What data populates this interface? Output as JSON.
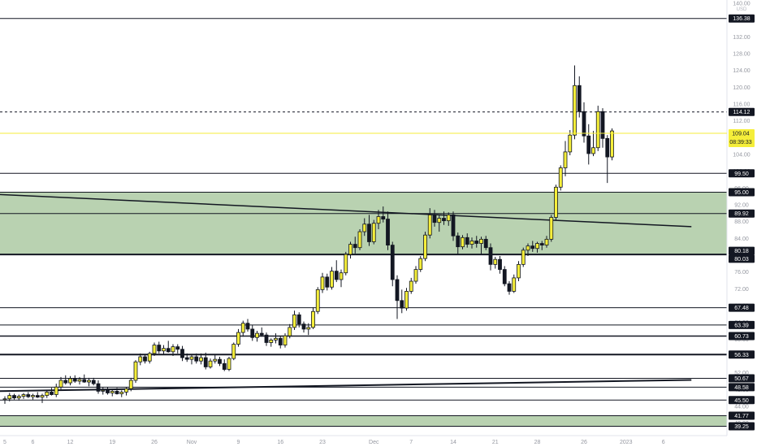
{
  "chart_data": {
    "type": "candlestick",
    "currency": "USD",
    "ylim": [
      38,
      140
    ],
    "price_axis_ticks": [
      "140.00",
      "136.00",
      "132.00",
      "128.00",
      "124.00",
      "120.00",
      "116.00",
      "112.00",
      "108.00",
      "104.00",
      "100.00",
      "96.00",
      "92.00",
      "88.00",
      "84.00",
      "80.00",
      "76.00",
      "72.00",
      "68.00",
      "64.00",
      "60.00",
      "56.00",
      "52.00",
      "48.00",
      "44.00",
      "40.00"
    ],
    "time_axis_ticks": [
      {
        "label": "5",
        "index": 0
      },
      {
        "label": "6",
        "index": 6
      },
      {
        "label": "12",
        "index": 14
      },
      {
        "label": "19",
        "index": 23
      },
      {
        "label": "26",
        "index": 32
      },
      {
        "label": "Nov",
        "index": 40
      },
      {
        "label": "9",
        "index": 50
      },
      {
        "label": "16",
        "index": 59
      },
      {
        "label": "23",
        "index": 68
      },
      {
        "label": "Dec",
        "index": 79
      },
      {
        "label": "7",
        "index": 87
      },
      {
        "label": "14",
        "index": 96
      },
      {
        "label": "21",
        "index": 105
      },
      {
        "label": "28",
        "index": 114
      },
      {
        "label": "26",
        "index": 124
      },
      {
        "label": "2023",
        "index": 133
      },
      {
        "label": "6",
        "index": 141
      }
    ],
    "levels": [
      {
        "label": "136.38",
        "value": 136.38,
        "style": "solid",
        "width": 1
      },
      {
        "label": "114.12",
        "value": 114.12,
        "style": "dashed",
        "width": 1
      },
      {
        "label": "99.50",
        "value": 99.5,
        "style": "solid",
        "width": 1
      },
      {
        "label": "95.00",
        "value": 95.0,
        "style": "solid",
        "width": 1
      },
      {
        "label": "89.92",
        "value": 89.92,
        "style": "solid",
        "width": 1
      },
      {
        "label": "80.18",
        "value": 80.18,
        "style": "solid",
        "width": 2
      },
      {
        "label": "80.03",
        "value": 80.03,
        "style": "none",
        "width": 1
      },
      {
        "label": "67.48",
        "value": 67.48,
        "style": "solid",
        "width": 1
      },
      {
        "label": "63.39",
        "value": 63.39,
        "style": "solid",
        "width": 1
      },
      {
        "label": "60.73",
        "value": 60.73,
        "style": "solid",
        "width": 1.5
      },
      {
        "label": "56.33",
        "value": 56.33,
        "style": "solid",
        "width": 2
      },
      {
        "label": "50.67",
        "value": 50.67,
        "style": "solid",
        "width": 1
      },
      {
        "label": "48.58",
        "value": 48.58,
        "style": "solid",
        "width": 1
      },
      {
        "label": "45.50",
        "value": 45.5,
        "style": "solid",
        "width": 1
      },
      {
        "label": "41.77",
        "value": 41.77,
        "style": "solid",
        "width": 1
      },
      {
        "label": "39.25",
        "value": 39.25,
        "style": "solid",
        "width": 1
      }
    ],
    "zones": [
      {
        "from": 80.18,
        "to": 95.0,
        "color": "#b9d2b1"
      },
      {
        "from": 39.25,
        "to": 41.77,
        "color": "#b9d2b1"
      }
    ],
    "trendlines": [
      {
        "from": {
          "index": -2,
          "value": 94.5
        },
        "to": {
          "index": 147,
          "value": 86.8
        },
        "width": 1.5
      },
      {
        "from": {
          "index": -2,
          "value": 47.6
        },
        "to": {
          "index": 147,
          "value": 50.3
        },
        "width": 2
      }
    ],
    "current_price": {
      "label": "109.04",
      "value": 109.04,
      "countdown": "08:39:33",
      "color": "#f5ee3a"
    },
    "candles": {
      "start_index": 0,
      "ohlc": [
        [
          45.6,
          46.4,
          44.6,
          45.8
        ],
        [
          45.8,
          47.2,
          45.2,
          46.6
        ],
        [
          46.6,
          47.0,
          45.6,
          46.0
        ],
        [
          46.0,
          46.8,
          45.4,
          46.4
        ],
        [
          46.4,
          47.2,
          45.8,
          46.8
        ],
        [
          46.8,
          47.4,
          46.0,
          46.3
        ],
        [
          46.3,
          47.0,
          45.6,
          46.6
        ],
        [
          46.6,
          47.4,
          46.0,
          46.2
        ],
        [
          46.2,
          47.0,
          44.8,
          46.6
        ],
        [
          46.6,
          47.8,
          46.0,
          47.4
        ],
        [
          47.4,
          48.4,
          46.6,
          46.8
        ],
        [
          46.8,
          49.4,
          46.2,
          48.6
        ],
        [
          48.6,
          51.0,
          48.0,
          50.2
        ],
        [
          50.2,
          51.4,
          49.2,
          49.6
        ],
        [
          49.6,
          51.2,
          49.0,
          50.6
        ],
        [
          50.6,
          51.4,
          49.6,
          50.0
        ],
        [
          50.0,
          51.0,
          49.2,
          50.4
        ],
        [
          50.4,
          51.6,
          49.6,
          49.8
        ],
        [
          49.8,
          50.8,
          48.8,
          50.2
        ],
        [
          50.2,
          50.8,
          49.0,
          49.4
        ],
        [
          49.4,
          50.2,
          47.0,
          47.6
        ],
        [
          47.6,
          48.6,
          46.8,
          47.8
        ],
        [
          47.8,
          48.6,
          46.8,
          47.2
        ],
        [
          47.2,
          48.0,
          46.4,
          47.6
        ],
        [
          47.6,
          48.4,
          46.8,
          47.0
        ],
        [
          47.0,
          47.8,
          46.2,
          47.4
        ],
        [
          47.4,
          48.6,
          46.6,
          48.2
        ],
        [
          48.2,
          50.8,
          47.6,
          50.2
        ],
        [
          50.2,
          55.0,
          49.6,
          54.6
        ],
        [
          54.6,
          56.6,
          53.8,
          55.8
        ],
        [
          55.8,
          56.4,
          54.2,
          54.8
        ],
        [
          54.8,
          57.0,
          54.2,
          56.6
        ],
        [
          56.6,
          59.2,
          56.0,
          58.6
        ],
        [
          58.6,
          59.4,
          56.6,
          57.2
        ],
        [
          57.2,
          58.6,
          56.2,
          57.8
        ],
        [
          57.8,
          59.6,
          56.8,
          57.0
        ],
        [
          57.0,
          58.8,
          56.0,
          58.2
        ],
        [
          58.2,
          58.8,
          56.6,
          57.6
        ],
        [
          57.6,
          58.4,
          54.8,
          55.6
        ],
        [
          55.6,
          56.6,
          54.6,
          55.2
        ],
        [
          55.2,
          56.4,
          54.0,
          55.8
        ],
        [
          55.8,
          56.6,
          54.2,
          54.8
        ],
        [
          54.8,
          56.6,
          54.0,
          55.6
        ],
        [
          55.6,
          56.8,
          52.8,
          53.4
        ],
        [
          53.4,
          55.4,
          53.0,
          54.8
        ],
        [
          54.8,
          56.4,
          54.2,
          55.2
        ],
        [
          55.2,
          55.8,
          53.6,
          54.2
        ],
        [
          54.2,
          55.2,
          52.4,
          52.8
        ],
        [
          52.8,
          55.8,
          52.4,
          55.4
        ],
        [
          55.4,
          59.2,
          55.0,
          58.8
        ],
        [
          58.8,
          62.4,
          58.2,
          61.6
        ],
        [
          61.6,
          64.4,
          60.6,
          63.8
        ],
        [
          63.8,
          64.8,
          61.8,
          62.4
        ],
        [
          62.4,
          63.4,
          59.6,
          60.4
        ],
        [
          60.4,
          62.0,
          59.4,
          61.4
        ],
        [
          61.4,
          62.8,
          60.6,
          61.0
        ],
        [
          61.0,
          61.6,
          58.4,
          59.2
        ],
        [
          59.2,
          60.2,
          58.2,
          59.8
        ],
        [
          59.8,
          61.4,
          59.0,
          60.2
        ],
        [
          60.2,
          60.8,
          57.8,
          58.6
        ],
        [
          58.6,
          61.4,
          58.0,
          60.8
        ],
        [
          60.8,
          63.6,
          60.2,
          62.8
        ],
        [
          62.8,
          66.8,
          62.2,
          65.8
        ],
        [
          65.8,
          66.4,
          62.8,
          63.6
        ],
        [
          63.6,
          64.2,
          61.6,
          62.4
        ],
        [
          62.4,
          63.8,
          61.0,
          62.8
        ],
        [
          62.8,
          67.6,
          62.4,
          66.6
        ],
        [
          66.6,
          72.4,
          66.0,
          71.8
        ],
        [
          71.8,
          75.8,
          71.0,
          74.8
        ],
        [
          74.8,
          75.6,
          71.6,
          72.4
        ],
        [
          72.4,
          77.2,
          71.8,
          76.2
        ],
        [
          76.2,
          78.8,
          73.6,
          74.2
        ],
        [
          74.2,
          76.6,
          72.4,
          75.8
        ],
        [
          75.8,
          80.8,
          75.2,
          80.2
        ],
        [
          80.2,
          83.2,
          79.2,
          82.6
        ],
        [
          82.6,
          84.4,
          80.4,
          81.8
        ],
        [
          81.8,
          86.2,
          81.2,
          85.6
        ],
        [
          85.6,
          88.8,
          84.6,
          87.4
        ],
        [
          87.4,
          89.6,
          82.2,
          83.2
        ],
        [
          83.2,
          88.4,
          82.6,
          87.6
        ],
        [
          87.6,
          90.8,
          86.2,
          89.2
        ],
        [
          89.2,
          91.6,
          87.8,
          88.6
        ],
        [
          88.6,
          90.4,
          81.2,
          82.4
        ],
        [
          82.4,
          83.2,
          72.6,
          74.2
        ],
        [
          74.2,
          75.2,
          64.8,
          69.2
        ],
        [
          69.2,
          71.8,
          66.2,
          67.4
        ],
        [
          67.4,
          72.2,
          66.8,
          71.4
        ],
        [
          71.4,
          74.6,
          70.8,
          73.8
        ],
        [
          73.8,
          77.4,
          73.2,
          76.6
        ],
        [
          76.6,
          79.8,
          76.0,
          79.2
        ],
        [
          79.2,
          85.6,
          78.6,
          84.8
        ],
        [
          84.8,
          91.2,
          84.0,
          89.6
        ],
        [
          89.6,
          90.8,
          86.8,
          87.8
        ],
        [
          87.8,
          89.6,
          85.6,
          88.8
        ],
        [
          88.8,
          90.4,
          87.2,
          88.2
        ],
        [
          88.2,
          90.2,
          87.0,
          89.6
        ],
        [
          89.6,
          90.4,
          83.4,
          84.6
        ],
        [
          84.6,
          85.4,
          80.0,
          82.0
        ],
        [
          82.0,
          84.8,
          81.4,
          84.2
        ],
        [
          84.2,
          85.2,
          81.8,
          82.6
        ],
        [
          82.6,
          84.2,
          81.6,
          83.4
        ],
        [
          83.4,
          84.6,
          81.8,
          82.8
        ],
        [
          82.8,
          84.4,
          80.2,
          83.8
        ],
        [
          83.8,
          84.6,
          81.2,
          81.8
        ],
        [
          81.8,
          82.8,
          76.4,
          77.8
        ],
        [
          77.8,
          79.6,
          76.8,
          79.0
        ],
        [
          79.0,
          79.8,
          75.6,
          76.6
        ],
        [
          76.6,
          77.4,
          72.6,
          73.2
        ],
        [
          73.2,
          73.8,
          70.6,
          71.4
        ],
        [
          71.4,
          75.4,
          71.0,
          74.6
        ],
        [
          74.6,
          78.6,
          73.8,
          77.8
        ],
        [
          77.8,
          81.8,
          77.2,
          81.2
        ],
        [
          81.2,
          82.8,
          79.8,
          82.2
        ],
        [
          82.2,
          83.4,
          80.8,
          81.6
        ],
        [
          81.6,
          83.2,
          80.6,
          82.8
        ],
        [
          82.8,
          83.4,
          81.2,
          82.4
        ],
        [
          82.4,
          84.6,
          81.8,
          83.8
        ],
        [
          83.8,
          89.6,
          83.2,
          89.0
        ],
        [
          89.0,
          96.8,
          88.4,
          96.2
        ],
        [
          96.2,
          101.4,
          95.4,
          100.8
        ],
        [
          100.8,
          107.2,
          98.8,
          104.6
        ],
        [
          104.6,
          109.8,
          103.8,
          108.6
        ],
        [
          108.6,
          125.2,
          107.6,
          120.4
        ],
        [
          120.4,
          122.6,
          112.8,
          114.2
        ],
        [
          114.2,
          116.4,
          106.8,
          108.4
        ],
        [
          108.4,
          111.2,
          101.6,
          104.2
        ],
        [
          104.2,
          109.6,
          103.6,
          105.6
        ],
        [
          105.6,
          115.6,
          104.8,
          114.2
        ],
        [
          114.2,
          115.0,
          105.6,
          107.8
        ],
        [
          107.8,
          108.6,
          97.2,
          103.4
        ],
        [
          103.4,
          110.2,
          102.6,
          109.6
        ]
      ]
    }
  }
}
